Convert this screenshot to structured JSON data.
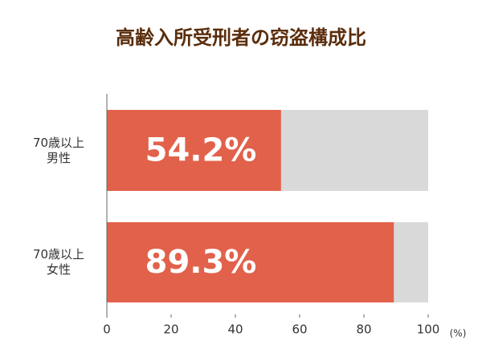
{
  "chart_data": {
    "type": "hbar",
    "title": "高齢入所受刑者の窃盗構成比",
    "categories": [
      "70歳以上\n男性",
      "70歳以上\n女性"
    ],
    "values": [
      54.2,
      89.3
    ],
    "value_labels": [
      "54.2%",
      "89.3%"
    ],
    "color": "#e2614b",
    "track_color": "#d9d9d9",
    "xlim": [
      0,
      100
    ],
    "xticks": [
      0,
      20,
      40,
      60,
      80,
      100
    ],
    "x_unit": "(%)"
  }
}
